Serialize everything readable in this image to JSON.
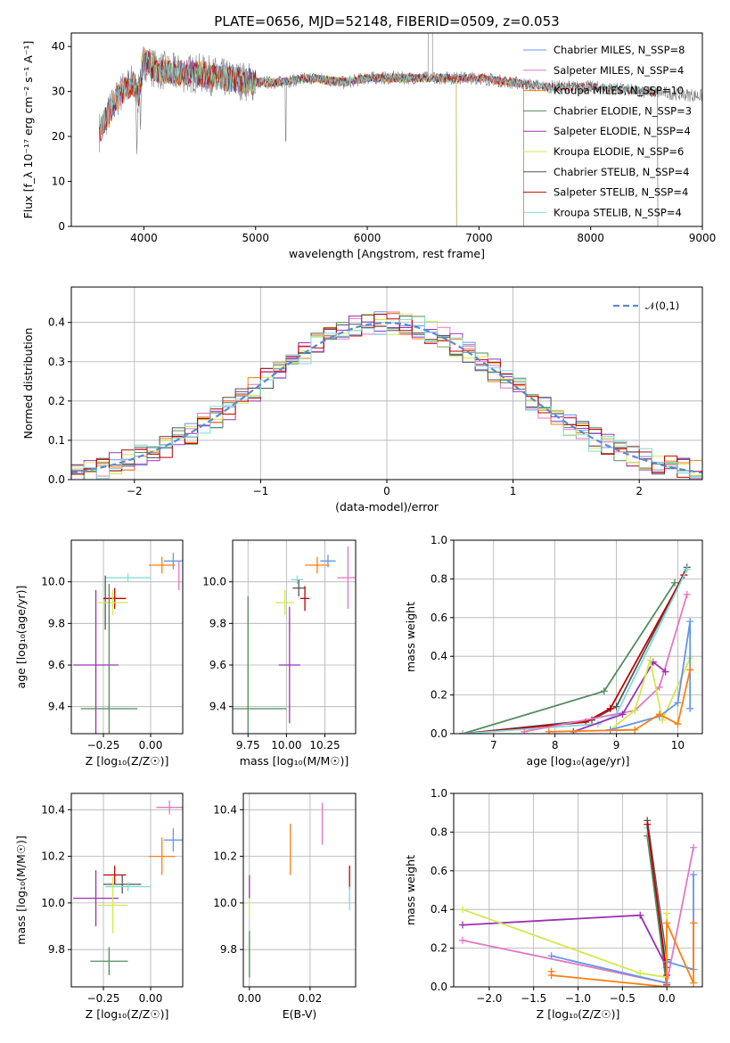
{
  "figure": {
    "title": "PLATE=0656, MJD=52148, FIBERID=0509, z=0.053",
    "background": "#ffffff"
  },
  "chart_data": [
    {
      "id": "spectrum",
      "type": "line",
      "title": "PLATE=0656, MJD=52148, FIBERID=0509, z=0.053",
      "xlabel": "wavelength [Angstrom, rest frame]",
      "ylabel": "Flux [f_λ 10⁻¹⁷ erg cm⁻² s⁻¹ A⁻¹]",
      "xlim": [
        3350,
        9000
      ],
      "ylim": [
        0,
        43
      ],
      "xticks": [
        "4000",
        "5000",
        "6000",
        "7000",
        "8000",
        "9000"
      ],
      "yticks": [
        "0",
        "10",
        "20",
        "30",
        "40"
      ],
      "grid": false,
      "legend": "top-right",
      "data_line": {
        "name": "data",
        "color": "#7f7f7f",
        "x_range": [
          3600,
          9000
        ]
      },
      "series": [
        {
          "name": "Chabrier MILES, N_SSP=8",
          "color": "#6495ed",
          "x_range": [
            3600,
            7400
          ]
        },
        {
          "name": "Salpeter MILES, N_SSP=4",
          "color": "#e377c2",
          "x_range": [
            3600,
            7400
          ]
        },
        {
          "name": "Kroupa MILES, N_SSP=10",
          "color": "#ff7f0e",
          "x_range": [
            3600,
            7400
          ]
        },
        {
          "name": "Chabrier ELODIE, N_SSP=3",
          "color": "#548c5f",
          "x_range": [
            3900,
            6800
          ]
        },
        {
          "name": "Salpeter ELODIE, N_SSP=4",
          "color": "#9b30b8",
          "x_range": [
            3900,
            6800
          ]
        },
        {
          "name": "Kroupa ELODIE, N_SSP=6",
          "color": "#d4e84d",
          "x_range": [
            3900,
            6800
          ]
        },
        {
          "name": "Chabrier STELIB, N_SSP=4",
          "color": "#555555",
          "x_range": [
            3600,
            8600
          ]
        },
        {
          "name": "Salpeter STELIB, N_SSP=4",
          "color": "#c00000",
          "x_range": [
            3600,
            8600
          ]
        },
        {
          "name": "Kroupa STELIB, N_SSP=4",
          "color": "#7fdbdb",
          "x_range": [
            3600,
            8600
          ]
        }
      ],
      "continuum": {
        "x": [
          3600,
          3700,
          3800,
          3900,
          3950,
          4000,
          4100,
          4300,
          4500,
          4700,
          5000,
          5200,
          5500,
          5800,
          6000,
          6300,
          6600,
          7000,
          7300,
          7600,
          8000,
          8500,
          9000
        ],
        "y": [
          21,
          26,
          30,
          32,
          29,
          37,
          35,
          34,
          34,
          33,
          32,
          32,
          33,
          32,
          33,
          33,
          33,
          33,
          32,
          31,
          31,
          30,
          29
        ]
      }
    },
    {
      "id": "residuals",
      "type": "line",
      "xlabel": "(data-model)/error",
      "ylabel": "Normed distribution",
      "xlim": [
        -2.5,
        2.5
      ],
      "ylim": [
        0,
        0.49
      ],
      "xticks": [
        "−2",
        "−1",
        "0",
        "1",
        "2"
      ],
      "yticks": [
        "0.0",
        "0.1",
        "0.2",
        "0.3",
        "0.4"
      ],
      "grid": true,
      "legend": "top-right",
      "reference_curve": {
        "name": "𝒩(0,1)",
        "color": "#5b8bd0",
        "style": "dashed"
      },
      "histograms": [
        {
          "color": "#6495ed"
        },
        {
          "color": "#e377c2"
        },
        {
          "color": "#ff7f0e"
        },
        {
          "color": "#548c5f"
        },
        {
          "color": "#9b30b8"
        },
        {
          "color": "#d4e84d"
        },
        {
          "color": "#555555"
        },
        {
          "color": "#c00000"
        },
        {
          "color": "#7fdbdb"
        }
      ]
    },
    {
      "id": "age-vs-Z",
      "type": "scatter",
      "xlabel": "Z [log₁₀(Z/Z☉)]",
      "ylabel": "age  [log₁₀(age/yr)]",
      "xlim": [
        -0.42,
        0.17
      ],
      "ylim": [
        9.27,
        10.2
      ],
      "xticks": [
        "−0.25",
        "0.00"
      ],
      "yticks": [
        "9.4",
        "9.6",
        "9.8",
        "10.0"
      ],
      "grid": true,
      "points": [
        {
          "color": "#6495ed",
          "x": 0.12,
          "xerr": 0.05,
          "y": 10.1,
          "yerr": 0.04
        },
        {
          "color": "#ff7f0e",
          "x": 0.06,
          "xerr": 0.07,
          "y": 10.08,
          "yerr": 0.04
        },
        {
          "color": "#e377c2",
          "x": 0.15,
          "xerr": 0.0,
          "y": 10.03,
          "yerr": 0.07
        },
        {
          "color": "#7fdbdb",
          "x": -0.12,
          "xerr": 0.12,
          "y": 10.02,
          "yerr": 0.02
        },
        {
          "color": "#555555",
          "x": -0.24,
          "xerr": 0.0,
          "y": 9.9,
          "yerr": 0.13
        },
        {
          "color": "#c00000",
          "x": -0.19,
          "xerr": 0.06,
          "y": 9.92,
          "yerr": 0.05
        },
        {
          "color": "#d4e84d",
          "x": -0.2,
          "xerr": 0.08,
          "y": 9.9,
          "yerr": 0.06
        },
        {
          "color": "#9b30b8",
          "x": -0.29,
          "xerr": 0.12,
          "y": 9.6,
          "yerr": 0.36
        },
        {
          "color": "#548c5f",
          "x": -0.22,
          "xerr": 0.15,
          "y": 9.39,
          "yerr": 0.6
        }
      ]
    },
    {
      "id": "age-vs-mass",
      "type": "scatter",
      "xlabel": "mass [log₁₀(M/M☉)]",
      "ylabel": "",
      "xlim": [
        9.65,
        10.45
      ],
      "ylim": [
        9.27,
        10.2
      ],
      "xticks": [
        "9.75",
        "10.00",
        "10.25"
      ],
      "yticks": [
        "9.4",
        "9.6",
        "9.8",
        "10.0"
      ],
      "grid": true,
      "points": [
        {
          "color": "#6495ed",
          "x": 10.27,
          "xerr": 0.05,
          "y": 10.1,
          "yerr": 0.03
        },
        {
          "color": "#ff7f0e",
          "x": 10.2,
          "xerr": 0.08,
          "y": 10.08,
          "yerr": 0.04
        },
        {
          "color": "#e377c2",
          "x": 10.4,
          "xerr": 0.07,
          "y": 10.02,
          "yerr": 0.15
        },
        {
          "color": "#7fdbdb",
          "x": 10.07,
          "xerr": 0.04,
          "y": 10.01,
          "yerr": 0.02
        },
        {
          "color": "#555555",
          "x": 10.08,
          "xerr": 0.04,
          "y": 9.97,
          "yerr": 0.04
        },
        {
          "color": "#c00000",
          "x": 10.12,
          "xerr": 0.03,
          "y": 9.92,
          "yerr": 0.06
        },
        {
          "color": "#d4e84d",
          "x": 9.99,
          "xerr": 0.06,
          "y": 9.9,
          "yerr": 0.06
        },
        {
          "color": "#9b30b8",
          "x": 10.02,
          "xerr": 0.07,
          "y": 9.6,
          "yerr": 0.28
        },
        {
          "color": "#548c5f",
          "x": 9.75,
          "xerr": 0.25,
          "y": 9.39,
          "yerr": 0.54
        }
      ]
    },
    {
      "id": "massweight-vs-age",
      "type": "line",
      "xlabel": "age  [log₁₀(age/yr)]",
      "ylabel": "mass weight",
      "xlim": [
        6.35,
        10.4
      ],
      "ylim": [
        0,
        1.0
      ],
      "xticks": [
        "7",
        "8",
        "9",
        "10"
      ],
      "yticks": [
        "0.0",
        "0.2",
        "0.4",
        "0.6",
        "0.8",
        "1.0"
      ],
      "grid": true,
      "series": [
        {
          "color": "#548c5f",
          "x": [
            6.5,
            8.8,
            9.95
          ],
          "y": [
            0.0,
            0.22,
            0.78
          ]
        },
        {
          "color": "#555555",
          "x": [
            6.5,
            8.6,
            9.0,
            10.15
          ],
          "y": [
            0.0,
            0.07,
            0.14,
            0.86
          ]
        },
        {
          "color": "#c00000",
          "x": [
            6.5,
            8.5,
            8.9,
            10.1
          ],
          "y": [
            0.0,
            0.06,
            0.13,
            0.82
          ]
        },
        {
          "color": "#7fdbdb",
          "x": [
            6.5,
            8.7,
            9.0,
            10.15
          ],
          "y": [
            0.0,
            0.05,
            0.1,
            0.85
          ]
        },
        {
          "color": "#e377c2",
          "x": [
            7.5,
            9.3,
            9.7,
            10.15
          ],
          "y": [
            0.01,
            0.12,
            0.24,
            0.72
          ]
        },
        {
          "color": "#9b30b8",
          "x": [
            8.3,
            9.1,
            9.6,
            9.8
          ],
          "y": [
            0.01,
            0.1,
            0.37,
            0.32
          ]
        },
        {
          "color": "#d4e84d",
          "x": [
            8.9,
            9.3,
            9.55,
            9.75,
            10.2
          ],
          "y": [
            0.02,
            0.12,
            0.38,
            0.07,
            0.39
          ]
        },
        {
          "color": "#6495ed",
          "x": [
            8.9,
            9.7,
            10.0,
            10.2,
            10.2
          ],
          "y": [
            0.02,
            0.09,
            0.16,
            0.58,
            0.13
          ]
        },
        {
          "color": "#ff7f0e",
          "x": [
            7.9,
            9.3,
            9.7,
            10.0,
            10.2
          ],
          "y": [
            0.01,
            0.02,
            0.1,
            0.05,
            0.33
          ]
        }
      ]
    },
    {
      "id": "mass-vs-Z",
      "type": "scatter",
      "xlabel": "Z [log₁₀(Z/Z☉)]",
      "ylabel": "mass [log₁₀(M/M☉)]",
      "xlim": [
        -0.42,
        0.17
      ],
      "ylim": [
        9.64,
        10.47
      ],
      "xticks": [
        "−0.25",
        "0.00"
      ],
      "yticks": [
        "9.8",
        "10.0",
        "10.2",
        "10.4"
      ],
      "grid": true,
      "points": [
        {
          "color": "#e377c2",
          "x": 0.1,
          "xerr": 0.07,
          "y": 10.41,
          "yerr": 0.03
        },
        {
          "color": "#6495ed",
          "x": 0.12,
          "xerr": 0.05,
          "y": 10.27,
          "yerr": 0.05
        },
        {
          "color": "#ff7f0e",
          "x": 0.06,
          "xerr": 0.07,
          "y": 10.2,
          "yerr": 0.08
        },
        {
          "color": "#c00000",
          "x": -0.19,
          "xerr": 0.06,
          "y": 10.12,
          "yerr": 0.04
        },
        {
          "color": "#555555",
          "x": -0.15,
          "xerr": 0.1,
          "y": 10.08,
          "yerr": 0.04
        },
        {
          "color": "#7fdbdb",
          "x": -0.12,
          "xerr": 0.12,
          "y": 10.07,
          "yerr": 0.02
        },
        {
          "color": "#9b30b8",
          "x": -0.29,
          "xerr": 0.12,
          "y": 10.02,
          "yerr": 0.12
        },
        {
          "color": "#d4e84d",
          "x": -0.2,
          "xerr": 0.08,
          "y": 9.99,
          "yerr": 0.12
        },
        {
          "color": "#548c5f",
          "x": -0.22,
          "xerr": 0.1,
          "y": 9.75,
          "yerr": 0.06
        }
      ]
    },
    {
      "id": "mass-vs-EBV",
      "type": "scatter",
      "xlabel": "E(B-V)",
      "ylabel": "",
      "xlim": [
        -0.002,
        0.035
      ],
      "ylim": [
        9.64,
        10.47
      ],
      "xticks": [
        "0.00",
        "0.02"
      ],
      "yticks": [
        "9.8",
        "10.0",
        "10.2",
        "10.4"
      ],
      "grid": true,
      "points": [
        {
          "color": "#e377c2",
          "x": 0.024,
          "y": 10.34,
          "yerr": 0.09
        },
        {
          "color": "#ff7f0e",
          "x": 0.0135,
          "y": 10.23,
          "yerr": 0.11
        },
        {
          "color": "#c00000",
          "x": 0.033,
          "y": 10.11,
          "yerr": 0.05
        },
        {
          "color": "#9b30b8",
          "x": 0.0,
          "y": 10.07,
          "yerr": 0.05
        },
        {
          "color": "#7fdbdb",
          "x": 0.033,
          "y": 10.02,
          "yerr": 0.05
        },
        {
          "color": "#d4e84d",
          "x": 0.0,
          "y": 9.98,
          "yerr": 0.04
        },
        {
          "color": "#548c5f",
          "x": 0.0,
          "y": 9.78,
          "yerr": 0.1
        }
      ]
    },
    {
      "id": "massweight-vs-Z",
      "type": "line",
      "xlabel": "Z [log₁₀(Z/Z☉)]",
      "ylabel": "mass weight",
      "xlim": [
        -2.4,
        0.4
      ],
      "ylim": [
        0,
        1.0
      ],
      "xticks": [
        "−2.0",
        "−1.5",
        "−1.0",
        "−0.5",
        "0.0"
      ],
      "yticks": [
        "0.0",
        "0.2",
        "0.4",
        "0.6",
        "0.8",
        "1.0"
      ],
      "grid": true,
      "series": [
        {
          "color": "#555555",
          "x": [
            -0.22,
            0.0
          ],
          "y": [
            0.86,
            0.14
          ]
        },
        {
          "color": "#548c5f",
          "x": [
            -0.22,
            0.0
          ],
          "y": [
            0.78,
            0.0
          ]
        },
        {
          "color": "#7fdbdb",
          "x": [
            -0.22,
            0.0
          ],
          "y": [
            0.82,
            0.1
          ]
        },
        {
          "color": "#c00000",
          "x": [
            -0.22,
            0.0
          ],
          "y": [
            0.84,
            0.06
          ]
        },
        {
          "color": "#9b30b8",
          "x": [
            -2.3,
            -0.3,
            0.0,
            0.0
          ],
          "y": [
            0.32,
            0.37,
            0.1,
            0.01
          ]
        },
        {
          "color": "#d4e84d",
          "x": [
            -2.3,
            -0.3,
            0.0,
            0.0
          ],
          "y": [
            0.4,
            0.07,
            0.05,
            0.38
          ]
        },
        {
          "color": "#e377c2",
          "x": [
            -2.3,
            0.0,
            0.3
          ],
          "y": [
            0.24,
            0.02,
            0.72
          ]
        },
        {
          "color": "#6495ed",
          "x": [
            -1.3,
            0.0,
            0.0,
            0.3,
            0.3
          ],
          "y": [
            0.16,
            0.02,
            0.13,
            0.09,
            0.58
          ]
        },
        {
          "color": "#ff7f0e",
          "x": [
            -1.3,
            -1.3,
            0.0,
            0.0,
            0.3,
            0.3
          ],
          "y": [
            0.08,
            0.06,
            0.0,
            0.33,
            0.02,
            0.33
          ]
        }
      ]
    }
  ]
}
